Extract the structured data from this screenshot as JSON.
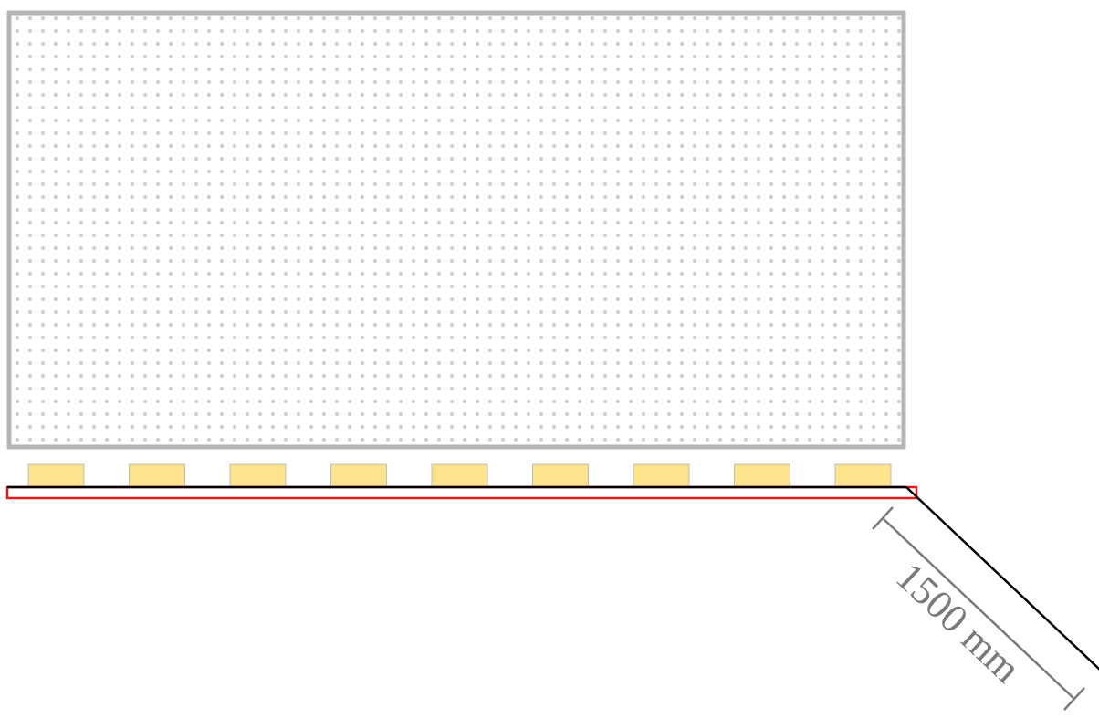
{
  "diagram": {
    "dimension_label": "1500 mm",
    "block_count": 9,
    "colors": {
      "panel_border": "#b5b5b5",
      "panel_dots": "#cfcfcf",
      "block_fill": "#fde38c",
      "block_stroke": "#bdbdbd",
      "rail_stroke": "#e01b1b",
      "line": "#000000",
      "dimension": "#7a7a7a"
    }
  }
}
